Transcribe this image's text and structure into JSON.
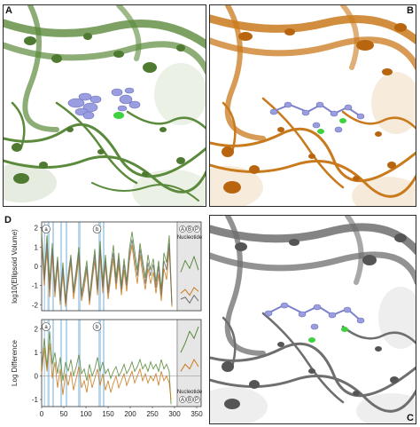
{
  "panel_letters": {
    "a": "A",
    "b": "B",
    "c": "C",
    "d": "D"
  },
  "colors": {
    "green": "#5b8a3c",
    "green_light": "#9fba82",
    "orange": "#c97a1c",
    "orange_light": "#e6b26b",
    "gray": "#6e6e6e",
    "gray_light": "#b9b9b9",
    "ligand": "#9a9ee0",
    "ion": "#3fd13f",
    "highlight": "#9fc8e6"
  },
  "chart_data": [
    {
      "type": "line",
      "ylabel": "log10(Ellipsoid Volume)",
      "yticks": [
        "2",
        "1",
        "0",
        "-1",
        "-2"
      ],
      "ylim": [
        -2.3,
        2.3
      ],
      "xlim": [
        0,
        360
      ],
      "markers": [
        "a",
        "b"
      ],
      "side_labels": [
        "A",
        "B",
        "P"
      ],
      "side_title": "Nucleotide",
      "highlight_bands": [
        [
          5,
          8
        ],
        [
          13,
          18
        ],
        [
          24,
          28
        ],
        [
          42,
          46
        ],
        [
          54,
          58
        ],
        [
          82,
          88
        ],
        [
          128,
          134
        ],
        [
          138,
          142
        ]
      ],
      "series": [
        {
          "color": "green",
          "values": [
            [
              0,
              1.8
            ],
            [
              6,
              -0.5
            ],
            [
              12,
              1.6
            ],
            [
              18,
              -0.8
            ],
            [
              24,
              1.2
            ],
            [
              30,
              -1.0
            ],
            [
              36,
              0.5
            ],
            [
              42,
              -1.6
            ],
            [
              48,
              0.2
            ],
            [
              54,
              -1.8
            ],
            [
              60,
              -0.4
            ],
            [
              66,
              0.6
            ],
            [
              72,
              -1.2
            ],
            [
              78,
              -0.2
            ],
            [
              84,
              1.0
            ],
            [
              90,
              -1.4
            ],
            [
              96,
              -0.6
            ],
            [
              102,
              0.3
            ],
            [
              108,
              -1.6
            ],
            [
              114,
              -0.3
            ],
            [
              120,
              0.9
            ],
            [
              126,
              -1.0
            ],
            [
              132,
              1.3
            ],
            [
              138,
              -0.8
            ],
            [
              144,
              0.6
            ],
            [
              150,
              -1.2
            ],
            [
              156,
              0.0
            ],
            [
              162,
              1.1
            ],
            [
              168,
              -0.6
            ],
            [
              174,
              0.7
            ],
            [
              180,
              -1.0
            ],
            [
              186,
              0.4
            ],
            [
              192,
              -0.8
            ],
            [
              198,
              0.9
            ],
            [
              204,
              1.8
            ],
            [
              210,
              0.8
            ],
            [
              216,
              -0.2
            ],
            [
              222,
              1.2
            ],
            [
              228,
              0.3
            ],
            [
              234,
              -0.6
            ],
            [
              240,
              0.6
            ],
            [
              246,
              -0.2
            ],
            [
              252,
              0.4
            ],
            [
              258,
              -0.8
            ],
            [
              264,
              0.3
            ],
            [
              270,
              -1.2
            ],
            [
              276,
              0.7
            ],
            [
              282,
              0.2
            ],
            [
              288,
              1.6
            ],
            [
              294,
              -1.9
            ]
          ]
        },
        {
          "color": "orange",
          "values": [
            [
              0,
              1.2
            ],
            [
              6,
              -1.0
            ],
            [
              12,
              0.8
            ],
            [
              18,
              -1.6
            ],
            [
              24,
              0.6
            ],
            [
              30,
              -1.6
            ],
            [
              36,
              0.1
            ],
            [
              42,
              -2.0
            ],
            [
              48,
              -0.4
            ],
            [
              54,
              -2.1
            ],
            [
              60,
              -0.9
            ],
            [
              66,
              0.2
            ],
            [
              72,
              -1.7
            ],
            [
              78,
              -0.7
            ],
            [
              84,
              0.4
            ],
            [
              90,
              -1.8
            ],
            [
              96,
              -1.1
            ],
            [
              102,
              -0.2
            ],
            [
              108,
              -2.0
            ],
            [
              114,
              -0.8
            ],
            [
              120,
              0.3
            ],
            [
              126,
              -1.5
            ],
            [
              132,
              0.6
            ],
            [
              138,
              -1.4
            ],
            [
              144,
              0.1
            ],
            [
              150,
              -1.7
            ],
            [
              156,
              -0.6
            ],
            [
              162,
              0.4
            ],
            [
              168,
              -1.2
            ],
            [
              174,
              0.1
            ],
            [
              180,
              -1.5
            ],
            [
              186,
              -0.2
            ],
            [
              192,
              -1.3
            ],
            [
              198,
              0.3
            ],
            [
              204,
              1.1
            ],
            [
              210,
              0.0
            ],
            [
              216,
              -0.9
            ],
            [
              222,
              0.6
            ],
            [
              228,
              -0.4
            ],
            [
              234,
              -1.2
            ],
            [
              240,
              -0.1
            ],
            [
              246,
              -0.9
            ],
            [
              252,
              -0.3
            ],
            [
              258,
              -1.4
            ],
            [
              264,
              -0.4
            ],
            [
              270,
              -1.8
            ],
            [
              276,
              -0.1
            ],
            [
              282,
              -0.7
            ],
            [
              288,
              0.9
            ],
            [
              294,
              -2.1
            ]
          ]
        },
        {
          "color": "gray",
          "values": [
            [
              0,
              1.5
            ],
            [
              6,
              -0.7
            ],
            [
              12,
              1.2
            ],
            [
              18,
              -1.2
            ],
            [
              24,
              0.9
            ],
            [
              30,
              -1.3
            ],
            [
              36,
              0.3
            ],
            [
              42,
              -1.8
            ],
            [
              48,
              -0.1
            ],
            [
              54,
              -1.9
            ],
            [
              60,
              -0.6
            ],
            [
              66,
              0.4
            ],
            [
              72,
              -1.4
            ],
            [
              78,
              -0.4
            ],
            [
              84,
              0.7
            ],
            [
              90,
              -1.6
            ],
            [
              96,
              -0.8
            ],
            [
              102,
              0.0
            ],
            [
              108,
              -1.8
            ],
            [
              114,
              -0.5
            ],
            [
              120,
              0.6
            ],
            [
              126,
              -1.2
            ],
            [
              132,
              0.9
            ],
            [
              138,
              -1.1
            ],
            [
              144,
              0.3
            ],
            [
              150,
              -1.4
            ],
            [
              156,
              -0.3
            ],
            [
              162,
              0.7
            ],
            [
              168,
              -0.9
            ],
            [
              174,
              0.4
            ],
            [
              180,
              -1.2
            ],
            [
              186,
              0.1
            ],
            [
              192,
              -1.0
            ],
            [
              198,
              0.6
            ],
            [
              204,
              1.4
            ],
            [
              210,
              0.4
            ],
            [
              216,
              -0.5
            ],
            [
              222,
              0.9
            ],
            [
              228,
              0.0
            ],
            [
              234,
              -0.9
            ],
            [
              240,
              0.2
            ],
            [
              246,
              -0.5
            ],
            [
              252,
              0.1
            ],
            [
              258,
              -1.1
            ],
            [
              264,
              0.0
            ],
            [
              270,
              -1.5
            ],
            [
              276,
              0.3
            ],
            [
              282,
              -0.2
            ],
            [
              288,
              1.2
            ],
            [
              294,
              -2.0
            ]
          ]
        }
      ],
      "nucleotide": {
        "green": [
          -0.3,
          0.3,
          -0.1,
          0.5,
          -0.2
        ],
        "orange": [
          -1.4,
          -1.2,
          -1.5,
          -1.1,
          -1.3
        ],
        "gray": [
          -1.7,
          -1.6,
          -1.9,
          -1.5,
          -1.8
        ]
      }
    },
    {
      "type": "line",
      "ylabel": "Log Difference",
      "yticks": [
        "2",
        "1",
        "0",
        "-1"
      ],
      "ylim": [
        -1.3,
        2.4
      ],
      "xlim": [
        0,
        360
      ],
      "xticks": [
        "0",
        "50",
        "100",
        "150",
        "200",
        "250",
        "300",
        "350"
      ],
      "markers": [
        "a",
        "b"
      ],
      "side_labels": [
        "A",
        "B",
        "P"
      ],
      "side_title": "Nucleotide",
      "highlight_bands": [
        [
          5,
          8
        ],
        [
          13,
          18
        ],
        [
          24,
          28
        ],
        [
          42,
          46
        ],
        [
          54,
          58
        ],
        [
          82,
          88
        ],
        [
          128,
          134
        ],
        [
          138,
          142
        ]
      ],
      "series": [
        {
          "color": "green",
          "values": [
            [
              0,
              0.3
            ],
            [
              6,
              1.6
            ],
            [
              12,
              0.4
            ],
            [
              18,
              1.9
            ],
            [
              24,
              0.5
            ],
            [
              30,
              1.0
            ],
            [
              36,
              0.1
            ],
            [
              42,
              0.8
            ],
            [
              48,
              -0.2
            ],
            [
              54,
              0.6
            ],
            [
              60,
              0.2
            ],
            [
              66,
              0.7
            ],
            [
              72,
              0.0
            ],
            [
              78,
              0.4
            ],
            [
              84,
              0.9
            ],
            [
              90,
              0.1
            ],
            [
              96,
              0.3
            ],
            [
              102,
              -0.2
            ],
            [
              108,
              0.5
            ],
            [
              114,
              0.0
            ],
            [
              120,
              0.3
            ],
            [
              126,
              0.8
            ],
            [
              132,
              0.2
            ],
            [
              138,
              0.6
            ],
            [
              144,
              0.1
            ],
            [
              150,
              0.3
            ],
            [
              156,
              -0.1
            ],
            [
              162,
              0.2
            ],
            [
              168,
              0.4
            ],
            [
              174,
              0.0
            ],
            [
              180,
              0.2
            ],
            [
              186,
              0.5
            ],
            [
              192,
              0.1
            ],
            [
              198,
              0.3
            ],
            [
              204,
              0.6
            ],
            [
              210,
              0.2
            ],
            [
              216,
              0.4
            ],
            [
              222,
              0.7
            ],
            [
              228,
              0.3
            ],
            [
              234,
              0.5
            ],
            [
              240,
              0.2
            ],
            [
              246,
              0.6
            ],
            [
              252,
              0.3
            ],
            [
              258,
              0.5
            ],
            [
              264,
              0.2
            ],
            [
              270,
              0.7
            ],
            [
              276,
              0.3
            ],
            [
              282,
              0.5
            ],
            [
              288,
              0.2
            ],
            [
              292,
              -1.2
            ]
          ]
        },
        {
          "color": "orange",
          "values": [
            [
              0,
              0.1
            ],
            [
              6,
              1.2
            ],
            [
              12,
              0.2
            ],
            [
              18,
              1.4
            ],
            [
              24,
              -0.1
            ],
            [
              30,
              0.6
            ],
            [
              36,
              -0.5
            ],
            [
              42,
              0.3
            ],
            [
              48,
              -0.8
            ],
            [
              54,
              0.1
            ],
            [
              60,
              -0.4
            ],
            [
              66,
              0.2
            ],
            [
              72,
              -0.6
            ],
            [
              78,
              -0.1
            ],
            [
              84,
              0.4
            ],
            [
              90,
              -0.5
            ],
            [
              96,
              -0.2
            ],
            [
              102,
              -0.7
            ],
            [
              108,
              0.1
            ],
            [
              114,
              -0.5
            ],
            [
              120,
              -0.1
            ],
            [
              126,
              0.3
            ],
            [
              132,
              -0.4
            ],
            [
              138,
              0.1
            ],
            [
              144,
              -0.6
            ],
            [
              150,
              -0.2
            ],
            [
              156,
              -0.7
            ],
            [
              162,
              -0.3
            ],
            [
              168,
              0.0
            ],
            [
              174,
              -0.5
            ],
            [
              180,
              -0.2
            ],
            [
              186,
              0.1
            ],
            [
              192,
              -0.4
            ],
            [
              198,
              -0.1
            ],
            [
              204,
              0.2
            ],
            [
              210,
              -0.3
            ],
            [
              216,
              0.0
            ],
            [
              222,
              0.3
            ],
            [
              228,
              -0.2
            ],
            [
              234,
              0.1
            ],
            [
              240,
              -0.3
            ],
            [
              246,
              0.0
            ],
            [
              252,
              -0.2
            ],
            [
              258,
              0.1
            ],
            [
              264,
              -0.4
            ],
            [
              270,
              0.2
            ],
            [
              276,
              -0.2
            ],
            [
              282,
              0.0
            ],
            [
              288,
              -0.3
            ],
            [
              292,
              -1.0
            ]
          ]
        }
      ],
      "nucleotide": {
        "green": [
          1.0,
          1.4,
          1.9,
          1.6,
          2.1
        ],
        "orange": [
          0.2,
          0.5,
          0.3,
          0.7,
          0.4
        ]
      }
    }
  ]
}
